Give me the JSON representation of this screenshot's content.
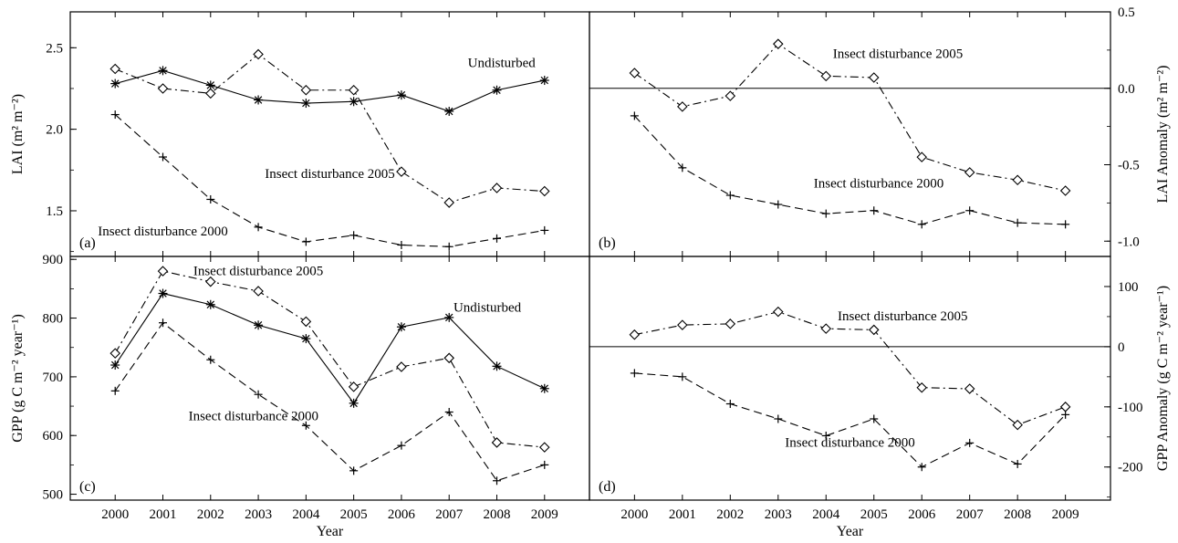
{
  "chart_data": [
    {
      "panel_label": "(a)",
      "type": "line",
      "x": [
        2000,
        2001,
        2002,
        2003,
        2004,
        2005,
        2006,
        2007,
        2008,
        2009
      ],
      "xlabel": "",
      "ylabel": "LAI (m² m⁻²)",
      "ylim": [
        1.22,
        2.72
      ],
      "yticks": [
        "1.5",
        "2.0",
        "2.5"
      ],
      "ytick_values": [
        1.5,
        2.0,
        2.5
      ],
      "yaxis_side": "left",
      "series": [
        {
          "name": "Undisturbed",
          "marker": "star",
          "dash": "solid",
          "values": [
            2.28,
            2.36,
            2.27,
            2.18,
            2.16,
            2.17,
            2.21,
            2.11,
            2.24,
            2.3
          ]
        },
        {
          "name": "Insect disturbance 2005",
          "marker": "diamond",
          "dash": "dashdot",
          "values": [
            2.37,
            2.25,
            2.22,
            2.46,
            2.24,
            2.24,
            1.74,
            1.55,
            1.64,
            1.62
          ]
        },
        {
          "name": "Insect disturbance 2000",
          "marker": "plus",
          "dash": "dashed",
          "values": [
            2.09,
            1.83,
            1.57,
            1.4,
            1.31,
            1.35,
            1.29,
            1.28,
            1.33,
            1.38
          ]
        }
      ],
      "annotations": [
        {
          "text": "Undisturbed",
          "x": 2008.1,
          "y": 2.38
        },
        {
          "text": "Insect disturbance 2005",
          "x": 2004.5,
          "y": 1.7
        },
        {
          "text": "Insect disturbance 2000",
          "x": 2001.0,
          "y": 1.35
        }
      ]
    },
    {
      "panel_label": "(b)",
      "type": "line",
      "x": [
        2000,
        2001,
        2002,
        2003,
        2004,
        2005,
        2006,
        2007,
        2008,
        2009
      ],
      "xlabel": "",
      "ylabel": "LAI Anomaly (m² m⁻²)",
      "ylim": [
        -1.1,
        0.5
      ],
      "yticks": [
        "-1.0",
        "-0.5",
        "0.0",
        "0.5"
      ],
      "ytick_values": [
        -1.0,
        -0.5,
        0.0,
        0.5
      ],
      "yaxis_side": "right",
      "zero_line": true,
      "series": [
        {
          "name": "Insect disturbance 2005",
          "marker": "diamond",
          "dash": "dashdot",
          "values": [
            0.1,
            -0.12,
            -0.05,
            0.29,
            0.08,
            0.07,
            -0.45,
            -0.55,
            -0.6,
            -0.67
          ]
        },
        {
          "name": "Insect disturbance 2000",
          "marker": "plus",
          "dash": "dashed",
          "values": [
            -0.18,
            -0.52,
            -0.7,
            -0.76,
            -0.82,
            -0.8,
            -0.89,
            -0.8,
            -0.88,
            -0.89
          ]
        }
      ],
      "annotations": [
        {
          "text": "Insect disturbance 2005",
          "x": 2005.5,
          "y": 0.2
        },
        {
          "text": "Insect disturbance 2000",
          "x": 2005.1,
          "y": -0.65
        }
      ]
    },
    {
      "panel_label": "(c)",
      "type": "line",
      "x": [
        2000,
        2001,
        2002,
        2003,
        2004,
        2005,
        2006,
        2007,
        2008,
        2009
      ],
      "xlabel": "Year",
      "ylabel": "GPP (g C m⁻² year⁻¹)",
      "ylim": [
        490,
        905
      ],
      "yticks": [
        "500",
        "600",
        "700",
        "800",
        "900"
      ],
      "ytick_values": [
        500,
        600,
        700,
        800,
        900
      ],
      "yaxis_side": "left",
      "series": [
        {
          "name": "Undisturbed",
          "marker": "star",
          "dash": "solid",
          "values": [
            720,
            842,
            823,
            788,
            765,
            655,
            785,
            801,
            718,
            680
          ]
        },
        {
          "name": "Insect disturbance 2005",
          "marker": "diamond",
          "dash": "dashdot",
          "values": [
            740,
            880,
            862,
            846,
            794,
            683,
            717,
            732,
            588,
            580
          ]
        },
        {
          "name": "Insect disturbance 2000",
          "marker": "plus",
          "dash": "dashed",
          "values": [
            676,
            792,
            729,
            670,
            617,
            540,
            583,
            640,
            523,
            550
          ]
        }
      ],
      "annotations": [
        {
          "text": "Insect disturbance 2005",
          "x": 2003.0,
          "y": 873
        },
        {
          "text": "Undisturbed",
          "x": 2007.8,
          "y": 811
        },
        {
          "text": "Insect disturbance 2000",
          "x": 2002.9,
          "y": 626
        }
      ]
    },
    {
      "panel_label": "(d)",
      "type": "line",
      "x": [
        2000,
        2001,
        2002,
        2003,
        2004,
        2005,
        2006,
        2007,
        2008,
        2009
      ],
      "xlabel": "Year",
      "ylabel": "GPP Anomaly (g C m⁻² year⁻¹)",
      "ylim": [
        -255,
        150
      ],
      "yticks": [
        "-200",
        "-100",
        "0",
        "100"
      ],
      "ytick_values": [
        -200,
        -100,
        0,
        100
      ],
      "yaxis_side": "right",
      "zero_line": true,
      "series": [
        {
          "name": "Insect disturbance 2005",
          "marker": "diamond",
          "dash": "dashdot",
          "values": [
            20,
            36,
            38,
            58,
            30,
            28,
            -68,
            -70,
            -130,
            -100
          ]
        },
        {
          "name": "Insect disturbance 2000",
          "marker": "plus",
          "dash": "dashed",
          "values": [
            -44,
            -50,
            -95,
            -120,
            -148,
            -120,
            -200,
            -160,
            -195,
            -113
          ]
        }
      ],
      "annotations": [
        {
          "text": "Insect disturbance 2005",
          "x": 2005.6,
          "y": 44
        },
        {
          "text": "Insect disturbance 2000",
          "x": 2004.5,
          "y": -166
        }
      ]
    }
  ]
}
